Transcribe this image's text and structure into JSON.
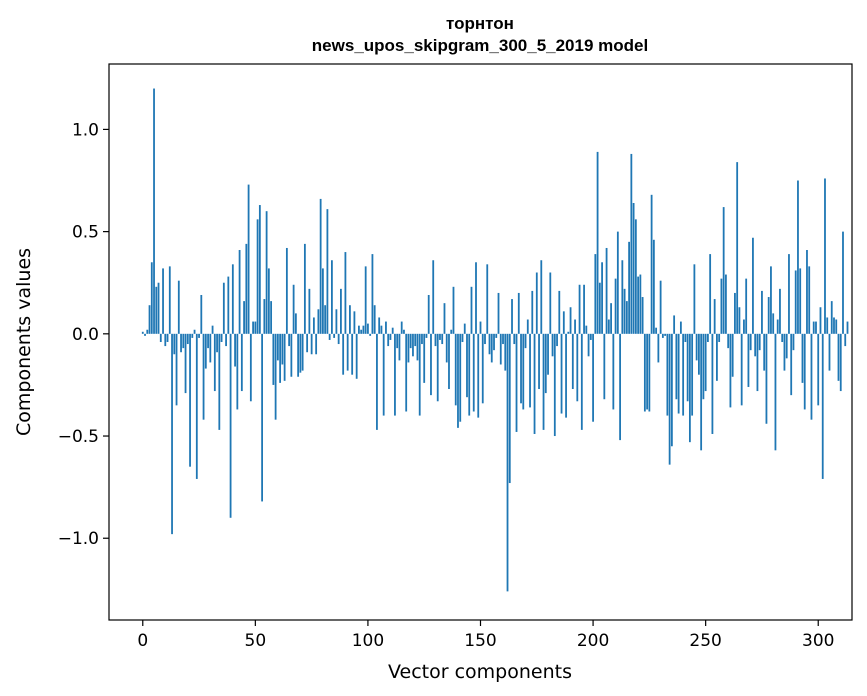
{
  "chart_data": {
    "type": "bar",
    "title": "торнтон",
    "subtitle": "news_upos_skipgram_300_5_2019 model",
    "xlabel": "Vector components",
    "ylabel": "Components values",
    "xlim": [
      -15,
      315
    ],
    "ylim": [
      -1.4,
      1.32
    ],
    "xticks": [
      0,
      50,
      100,
      150,
      200,
      250,
      300
    ],
    "yticks": [
      -1.0,
      -0.5,
      0.0,
      0.5,
      1.0
    ],
    "xtick_labels": [
      "0",
      "50",
      "100",
      "150",
      "200",
      "250",
      "300"
    ],
    "ytick_labels": [
      "−1.0",
      "−0.5",
      "0.0",
      "0.5",
      "1.0"
    ],
    "bar_color": "#1f77b4",
    "values": [
      0.01,
      -0.01,
      0.02,
      0.14,
      0.35,
      1.2,
      0.23,
      0.25,
      -0.04,
      0.32,
      -0.06,
      -0.04,
      0.33,
      -0.98,
      -0.1,
      -0.35,
      0.26,
      -0.09,
      -0.07,
      -0.29,
      -0.05,
      -0.65,
      -0.02,
      0.02,
      -0.71,
      -0.02,
      0.19,
      -0.42,
      -0.17,
      -0.07,
      -0.14,
      0.04,
      -0.28,
      -0.09,
      -0.47,
      -0.04,
      0.25,
      -0.06,
      0.28,
      -0.9,
      0.34,
      -0.16,
      -0.37,
      0.41,
      -0.28,
      0.16,
      0.44,
      0.73,
      -0.33,
      0.06,
      0.06,
      0.56,
      0.63,
      -0.82,
      0.17,
      0.6,
      0.32,
      0.16,
      -0.25,
      -0.42,
      -0.13,
      -0.24,
      -0.15,
      -0.23,
      0.42,
      -0.06,
      -0.21,
      0.24,
      0.1,
      -0.21,
      -0.19,
      -0.18,
      0.44,
      -0.09,
      0.22,
      -0.1,
      0.08,
      -0.1,
      0.12,
      0.66,
      0.32,
      0.14,
      0.61,
      -0.03,
      0.36,
      -0.02,
      0.12,
      -0.05,
      0.22,
      -0.2,
      0.4,
      -0.18,
      0.14,
      -0.2,
      0.11,
      -0.22,
      0.04,
      0.02,
      0.04,
      0.33,
      0.05,
      -0.01,
      0.39,
      0.14,
      -0.47,
      0.08,
      0.04,
      -0.4,
      0.06,
      -0.06,
      -0.03,
      0.03,
      -0.4,
      -0.07,
      -0.13,
      0.06,
      0.02,
      -0.38,
      -0.14,
      -0.07,
      -0.11,
      -0.06,
      -0.13,
      -0.4,
      -0.05,
      -0.24,
      -0.02,
      0.19,
      -0.3,
      0.36,
      -0.06,
      -0.33,
      -0.03,
      -0.05,
      0.15,
      -0.14,
      -0.27,
      0.02,
      0.23,
      -0.35,
      -0.46,
      -0.43,
      -0.04,
      0.05,
      -0.31,
      -0.4,
      0.23,
      -0.38,
      0.35,
      -0.41,
      0.06,
      -0.34,
      -0.05,
      0.34,
      -0.1,
      -0.14,
      -0.08,
      -0.02,
      0.2,
      -0.15,
      -0.05,
      -0.18,
      -1.26,
      -0.73,
      0.17,
      -0.05,
      -0.48,
      0.2,
      -0.34,
      -0.37,
      -0.07,
      0.07,
      -0.36,
      0.21,
      -0.49,
      0.3,
      -0.27,
      0.36,
      -0.47,
      -0.29,
      -0.2,
      0.3,
      -0.11,
      -0.5,
      -0.06,
      0.21,
      -0.39,
      0.11,
      -0.41,
      0.01,
      0.13,
      -0.27,
      0.07,
      -0.33,
      0.24,
      -0.47,
      0.24,
      0.04,
      -0.11,
      -0.03,
      -0.43,
      0.39,
      0.89,
      0.25,
      0.35,
      -0.32,
      0.42,
      0.07,
      0.15,
      -0.37,
      0.27,
      0.5,
      -0.52,
      0.36,
      0.22,
      0.16,
      0.45,
      0.88,
      0.64,
      0.56,
      0.28,
      0.29,
      0.18,
      -0.38,
      -0.37,
      -0.38,
      0.68,
      0.46,
      0.03,
      -0.14,
      0.26,
      -0.02,
      -0.01,
      -0.4,
      -0.64,
      -0.55,
      0.09,
      -0.32,
      -0.39,
      0.06,
      -0.4,
      -0.04,
      -0.33,
      -0.53,
      -0.4,
      0.34,
      -0.13,
      -0.2,
      -0.57,
      -0.32,
      -0.28,
      -0.04,
      0.39,
      -0.49,
      0.17,
      -0.23,
      -0.04,
      0.27,
      0.62,
      0.29,
      -0.07,
      -0.36,
      -0.21,
      0.2,
      0.84,
      0.13,
      -0.35,
      0.07,
      0.27,
      -0.26,
      -0.08,
      0.47,
      -0.11,
      -0.28,
      -0.08,
      0.21,
      -0.18,
      -0.44,
      0.18,
      0.33,
      0.1,
      -0.57,
      0.07,
      0.22,
      -0.04,
      -0.18,
      -0.12,
      0.39,
      -0.3,
      -0.08,
      0.31,
      0.75,
      0.32,
      -0.24,
      -0.37,
      0.41,
      0.33,
      -0.42,
      0.06,
      0.06,
      -0.35,
      0.13,
      -0.71,
      0.76,
      0.08,
      -0.18,
      0.16,
      0.08,
      0.07,
      -0.23,
      -0.28,
      0.5,
      -0.06,
      0.06
    ]
  }
}
